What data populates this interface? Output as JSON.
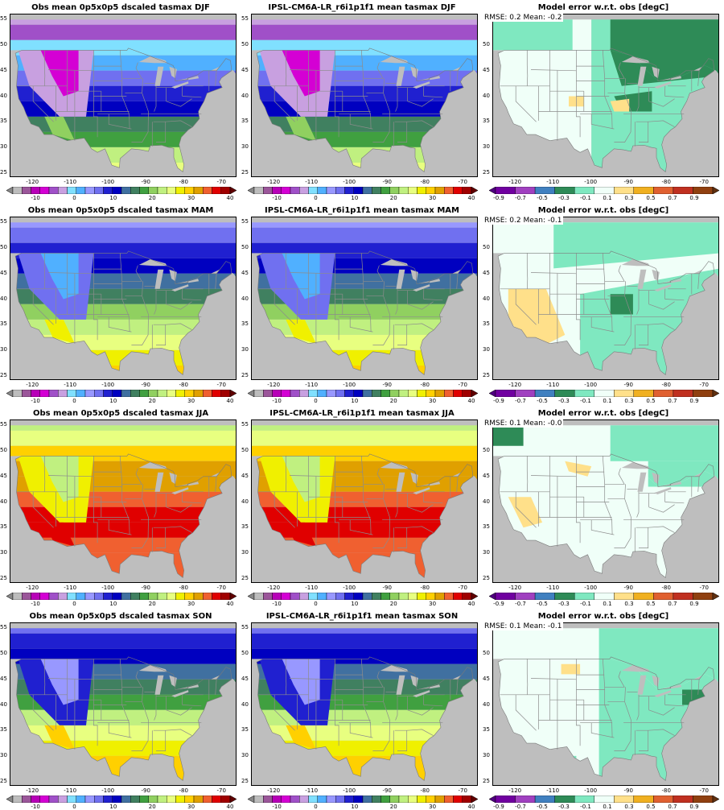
{
  "panels": [
    {
      "title": "Obs mean 0p5x0p5 dscaled tasmax DJF",
      "season": "DJF",
      "kind": "obs",
      "stats": ""
    },
    {
      "title": "IPSL-CM6A-LR_r6i1p1f1 mean tasmax DJF",
      "season": "DJF",
      "kind": "model",
      "stats": ""
    },
    {
      "title": "Model error w.r.t. obs [degC]",
      "season": "DJF",
      "kind": "err",
      "stats": "RMSE: 0.2  Mean: -0.2"
    },
    {
      "title": "Obs mean 0p5x0p5 dscaled tasmax MAM",
      "season": "MAM",
      "kind": "obs",
      "stats": ""
    },
    {
      "title": "IPSL-CM6A-LR_r6i1p1f1 mean tasmax MAM",
      "season": "MAM",
      "kind": "model",
      "stats": ""
    },
    {
      "title": "Model error w.r.t. obs [degC]",
      "season": "MAM",
      "kind": "err",
      "stats": "RMSE: 0.2  Mean: -0.1"
    },
    {
      "title": "Obs mean 0p5x0p5 dscaled tasmax JJA",
      "season": "JJA",
      "kind": "obs",
      "stats": ""
    },
    {
      "title": "IPSL-CM6A-LR_r6i1p1f1 mean tasmax JJA",
      "season": "JJA",
      "kind": "model",
      "stats": ""
    },
    {
      "title": "Model error w.r.t. obs [degC]",
      "season": "JJA",
      "kind": "err",
      "stats": "RMSE: 0.1  Mean: -0.0"
    },
    {
      "title": "Obs mean 0p5x0p5 dscaled tasmax SON",
      "season": "SON",
      "kind": "obs",
      "stats": ""
    },
    {
      "title": "IPSL-CM6A-LR_r6i1p1f1 mean tasmax SON",
      "season": "SON",
      "kind": "model",
      "stats": ""
    },
    {
      "title": "Model error w.r.t. obs [degC]",
      "season": "SON",
      "kind": "err",
      "stats": "RMSE: 0.1  Mean: -0.1"
    }
  ],
  "axes": {
    "lat_ticks": [
      "25",
      "30",
      "35",
      "40",
      "45",
      "50",
      "55"
    ],
    "lon_ticks": [
      "-120",
      "-110",
      "-100",
      "-90",
      "-80",
      "-70"
    ],
    "lon_range": [
      -126,
      -66
    ],
    "lat_range": [
      24,
      56
    ]
  },
  "colorbars": {
    "temp": {
      "labels": [
        "-10",
        "0",
        "10",
        "20",
        "30",
        "40"
      ],
      "colors": [
        "#bdbdbd",
        "#9b569a",
        "#b800b8",
        "#d400d4",
        "#a050c8",
        "#c8a0e0",
        "#80e0ff",
        "#50b0ff",
        "#9898ff",
        "#7070f0",
        "#2020d0",
        "#0000c0",
        "#4070a0",
        "#408060",
        "#40a040",
        "#90d060",
        "#c0f080",
        "#e8ff80",
        "#f0f000",
        "#ffd000",
        "#e0a000",
        "#f06030",
        "#e00000",
        "#a00000"
      ],
      "end_color_low": "#888888",
      "end_color_high": "#600000"
    },
    "err": {
      "labels": [
        "-0.9",
        "-0.7",
        "-0.5",
        "-0.3",
        "-0.1",
        "0.1",
        "0.3",
        "0.5",
        "0.7",
        "0.9"
      ],
      "colors": [
        "#7000a0",
        "#a040c0",
        "#4080c0",
        "#2e8b57",
        "#7fe8c0",
        "#f0fff8",
        "#ffe08a",
        "#f0b020",
        "#e06030",
        "#c03020",
        "#904010"
      ],
      "end_color_low": "#500080",
      "end_color_high": "#603010"
    }
  },
  "colors": {
    "land_bg": "#bebebe",
    "state_lines": "#8c8c8c",
    "ocean": "#bebebe"
  }
}
